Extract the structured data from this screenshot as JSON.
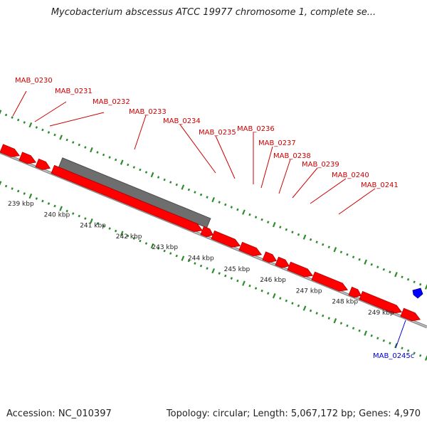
{
  "header": {
    "title": "Mycobacterium abscessus ATCC 19977 chromosome 1, complete se..."
  },
  "footer": {
    "accession": "Accession: NC_010397",
    "summary": "Topology: circular; Length: 5,067,172 bp; Genes: 4,970"
  },
  "colors": {
    "gene_fill": "#ff0000",
    "gene_stroke": "#b30000",
    "gene_label": "#cc0000",
    "gray_feature": "#6e6e6e",
    "minus_feature": "#0000ff",
    "minus_label": "#0000cc",
    "track_dots": "#2e8b2e"
  },
  "scale": {
    "unit": "kbp",
    "ticks": [
      "239 kbp",
      "240 kbp",
      "241 kbp",
      "242 kbp",
      "243 kbp",
      "244 kbp",
      "245 kbp",
      "246 kbp",
      "247 kbp",
      "248 kbp",
      "249 kbp"
    ]
  },
  "genes_plus": [
    {
      "label": "MAB_0230"
    },
    {
      "label": "MAB_0231"
    },
    {
      "label": "MAB_0232"
    },
    {
      "label": "MAB_0233"
    },
    {
      "label": "MAB_0234"
    },
    {
      "label": "MAB_0235"
    },
    {
      "label": "MAB_0236"
    },
    {
      "label": "MAB_0237"
    },
    {
      "label": "MAB_0238"
    },
    {
      "label": "MAB_0239"
    },
    {
      "label": "MAB_0240"
    },
    {
      "label": "MAB_0241"
    }
  ],
  "genes_minus": [
    {
      "label": "MAB_0245c"
    }
  ]
}
